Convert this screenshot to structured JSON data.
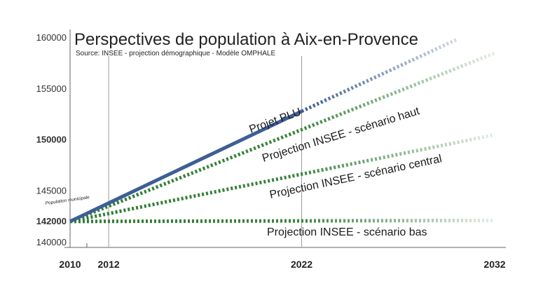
{
  "chart_data": {
    "type": "line",
    "title": "Perspectives de population à Aix-en-Provence",
    "subtitle": "Source: INSEE - projection démographique - Modèle OMPHALE",
    "xlim": [
      2010,
      2033
    ],
    "ylim": [
      140000,
      160000
    ],
    "yticks": [
      {
        "value": 160000,
        "label": "160000"
      },
      {
        "value": 155000,
        "label": "155000"
      },
      {
        "value": 150000,
        "label": "150000"
      },
      {
        "value": 145000,
        "label": "145000"
      },
      {
        "value": 142000,
        "label": "142000"
      },
      {
        "value": 140000,
        "label": "140000"
      }
    ],
    "xticks": [
      2010,
      2012,
      2022,
      2032
    ],
    "reference_lines_x": [
      2012,
      2022
    ],
    "base_label": "Population municipale",
    "series": [
      {
        "name": "Projet PLU",
        "color": "#3d5f94",
        "style": "solid",
        "points": [
          [
            2010,
            142000
          ],
          [
            2022,
            152800
          ]
        ],
        "extension": [
          [
            2022,
            152800
          ],
          [
            2030,
            159800
          ]
        ]
      },
      {
        "name": "Projection INSEE - scénario haut",
        "color": "#2e7d32",
        "style": "dotted",
        "points": [
          [
            2010,
            142000
          ],
          [
            2032,
            158500
          ]
        ]
      },
      {
        "name": "Projection INSEE - scénario central",
        "color": "#2e7d32",
        "style": "dotted",
        "points": [
          [
            2010,
            142000
          ],
          [
            2032,
            150500
          ]
        ]
      },
      {
        "name": "Projection INSEE - scénario bas",
        "color": "#2e7d32",
        "style": "dotted",
        "points": [
          [
            2010,
            142000
          ],
          [
            2032,
            142100
          ]
        ]
      }
    ]
  }
}
